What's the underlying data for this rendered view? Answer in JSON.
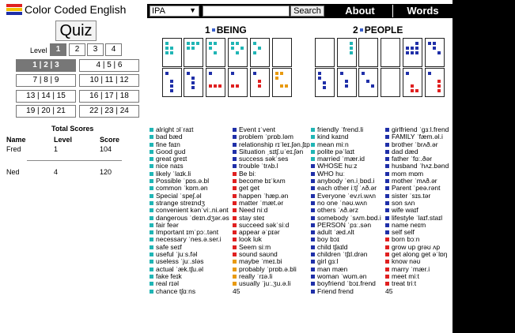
{
  "app": {
    "title": "Color Coded English"
  },
  "topbar": {
    "select_value": "IPA",
    "search_placeholder": "",
    "search_label": "Search",
    "about_label": "About",
    "words_label": "Words"
  },
  "quiz": {
    "label": "Quiz",
    "level_label": "Level",
    "levels": [
      "1",
      "2",
      "3",
      "4"
    ],
    "selected_level": "1",
    "groups": [
      "1 | 2 | 3",
      "4 | 5 | 6",
      "7 | 8 | 9",
      "10 | 11 | 12",
      "13 | 14 | 15",
      "16 | 17 | 18",
      "19 | 20 | 21",
      "22 | 23 | 24"
    ],
    "selected_group": "1 | 2 | 3"
  },
  "scores": {
    "title": "Total Scores",
    "headers": [
      "Name",
      "Level",
      "Score"
    ],
    "rows": [
      {
        "name": "Fred",
        "level": "1",
        "score": "104"
      },
      {
        "name": "Ned",
        "level": "4",
        "score": "120"
      }
    ]
  },
  "categories": [
    {
      "number": "1",
      "name": "BEING"
    },
    {
      "number": "2",
      "name": "PEOPLE"
    }
  ],
  "colors": {
    "teal": "#20b5b5",
    "navy": "#1f2fa8",
    "red": "#e02020",
    "orange": "#e89a10"
  },
  "columns": [
    {
      "items": [
        {
          "c": "teal",
          "t": "alright ɔlˈraɪt"
        },
        {
          "c": "teal",
          "t": "bad bæd"
        },
        {
          "c": "teal",
          "t": "fine faɪn"
        },
        {
          "c": "teal",
          "t": "Good gʊd"
        },
        {
          "c": "teal",
          "t": "great greɪt"
        },
        {
          "c": "teal",
          "t": "nice naɪs"
        },
        {
          "c": "teal",
          "t": "likely ˈlaɪk.li"
        },
        {
          "c": "teal",
          "t": "Possible ˈpɒs.ə.bl"
        },
        {
          "c": "teal",
          "t": "common ˈkɒm.ən"
        },
        {
          "c": "teal",
          "t": "Special ˈspeʃ.əl"
        },
        {
          "c": "teal",
          "t": "strange streɪndʒ"
        },
        {
          "c": "teal",
          "t": "convenient kənˈviː.ni.ənt"
        },
        {
          "c": "teal",
          "t": "dangerous ˈdeɪn.dʒər.əs"
        },
        {
          "c": "teal",
          "t": "fair feər"
        },
        {
          "c": "teal",
          "t": "Important ɪmˈpɔː.tənt"
        },
        {
          "c": "teal",
          "t": "necessary ˈnes.ə.ser.i"
        },
        {
          "c": "teal",
          "t": "safe seɪf"
        },
        {
          "c": "teal",
          "t": "useful ˈjuːs.fəl"
        },
        {
          "c": "teal",
          "t": "useless ˈjuː.sləs"
        },
        {
          "c": "teal",
          "t": "actual ˈæk.tʃu.əl"
        },
        {
          "c": "teal",
          "t": "fake feɪk"
        },
        {
          "c": "teal",
          "t": "real rɪəl"
        },
        {
          "c": "teal",
          "t": "chance tʃɑːns"
        }
      ],
      "count": ""
    },
    {
      "items": [
        {
          "c": "navy",
          "t": "Event ɪˈvent"
        },
        {
          "c": "navy",
          "t": "problem ˈprɒb.ləm"
        },
        {
          "c": "navy",
          "t": "relationship rɪˈleɪ.ʃən.ʃɪp"
        },
        {
          "c": "navy",
          "t": "Situation ˌsɪtʃ.uˈeɪ.ʃən"
        },
        {
          "c": "navy",
          "t": "success səkˈses"
        },
        {
          "c": "navy",
          "t": "trouble ˈtrʌb.l"
        },
        {
          "c": "red",
          "t": "Be biː"
        },
        {
          "c": "red",
          "t": "become bɪˈkʌm"
        },
        {
          "c": "red",
          "t": "get get"
        },
        {
          "c": "red",
          "t": "happen ˈhæp.ən"
        },
        {
          "c": "red",
          "t": "matter ˈmæt.ər"
        },
        {
          "c": "red",
          "t": "Need niːd"
        },
        {
          "c": "red",
          "t": "stay steɪ"
        },
        {
          "c": "red",
          "t": "succeed səkˈsiːd"
        },
        {
          "c": "red",
          "t": "appear əˈpɪər"
        },
        {
          "c": "red",
          "t": "look lʊk"
        },
        {
          "c": "red",
          "t": "Seem siːm"
        },
        {
          "c": "red",
          "t": "sound saʊnd"
        },
        {
          "c": "orange",
          "t": "maybe ˈmeɪ.bi"
        },
        {
          "c": "orange",
          "t": "probably ˈprɒb.ə.bli"
        },
        {
          "c": "orange",
          "t": "really ˈrɪə.li"
        },
        {
          "c": "orange",
          "t": "usually ˈjuː.ʒu.ə.li"
        }
      ],
      "count": "45"
    },
    {
      "items": [
        {
          "c": "teal",
          "t": "friendly ˈfrend.li"
        },
        {
          "c": "teal",
          "t": "kind kaɪnd"
        },
        {
          "c": "teal",
          "t": "mean miːn"
        },
        {
          "c": "teal",
          "t": "polite pəˈlaɪt"
        },
        {
          "c": "teal",
          "t": "married ˈmær.id"
        },
        {
          "c": "navy",
          "t": "WHOSE huːz"
        },
        {
          "c": "navy",
          "t": "WHO huː"
        },
        {
          "c": "navy",
          "t": "anybody ˈen.iˌbɒd.i"
        },
        {
          "c": "navy",
          "t": "each other iːtʃ ˈʌð.ər"
        },
        {
          "c": "navy",
          "t": "Everyone ˈev.ri.wʌn"
        },
        {
          "c": "navy",
          "t": "no one ˈnəʊ.wʌn"
        },
        {
          "c": "navy",
          "t": "others ˈʌð.ərz"
        },
        {
          "c": "navy",
          "t": "somebody ˈsʌm.bɒd.i"
        },
        {
          "c": "navy",
          "t": "PERSON ˈpɜː.sən"
        },
        {
          "c": "navy",
          "t": "adult ˈæd.ʌlt"
        },
        {
          "c": "navy",
          "t": "boy bɔɪ"
        },
        {
          "c": "navy",
          "t": "child tʃaɪld"
        },
        {
          "c": "navy",
          "t": "children ˈtʃɪl.drən"
        },
        {
          "c": "navy",
          "t": "girl gɜːl"
        },
        {
          "c": "navy",
          "t": "man mæn"
        },
        {
          "c": "navy",
          "t": "woman ˈwʊm.ən"
        },
        {
          "c": "navy",
          "t": "boyfriend ˈbɔɪ.frend"
        },
        {
          "c": "navy",
          "t": "Friend frend"
        }
      ],
      "count": ""
    },
    {
      "items": [
        {
          "c": "navy",
          "t": "girlfriend ˈgɜːl.frend"
        },
        {
          "c": "navy",
          "t": "FAMILY ˈfæm.əl.i"
        },
        {
          "c": "navy",
          "t": "brother ˈbrʌð.ər"
        },
        {
          "c": "navy",
          "t": "dad dæd"
        },
        {
          "c": "navy",
          "t": "father ˈfɑː.ðər"
        },
        {
          "c": "navy",
          "t": "husband ˈhʌz.bənd"
        },
        {
          "c": "navy",
          "t": "mom mɒm"
        },
        {
          "c": "navy",
          "t": "mother ˈmʌð.ər"
        },
        {
          "c": "navy",
          "t": "Parent ˈpeə.rənt"
        },
        {
          "c": "navy",
          "t": "sister ˈsɪs.tər"
        },
        {
          "c": "navy",
          "t": "son sʌn"
        },
        {
          "c": "navy",
          "t": "wife waɪf"
        },
        {
          "c": "navy",
          "t": "lifestyle ˈlaɪf.staɪl"
        },
        {
          "c": "navy",
          "t": "name neɪm"
        },
        {
          "c": "navy",
          "t": "self self"
        },
        {
          "c": "red",
          "t": "born bɔːn"
        },
        {
          "c": "red",
          "t": "grow up grəʊ ʌp"
        },
        {
          "c": "red",
          "t": "get along get əˈlɒŋ"
        },
        {
          "c": "red",
          "t": "know nəʊ"
        },
        {
          "c": "red",
          "t": "marry ˈmær.i"
        },
        {
          "c": "red",
          "t": "meet miːt"
        },
        {
          "c": "red",
          "t": "treat triːt"
        }
      ],
      "count": "45"
    }
  ]
}
